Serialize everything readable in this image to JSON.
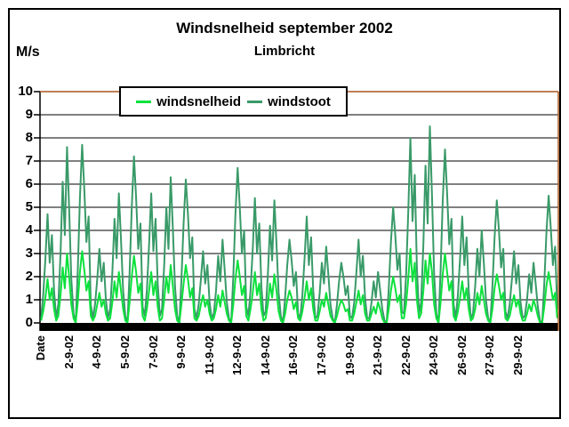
{
  "chart_data": {
    "type": "line",
    "title": "Windsnelheid september 2002",
    "subtitle": "Limbricht",
    "ylabel": "M/s",
    "xlabel": "Date",
    "ylim": [
      0,
      10
    ],
    "y_ticks": [
      0,
      1,
      2,
      3,
      4,
      5,
      6,
      7,
      8,
      9,
      10
    ],
    "grid": "horizontal",
    "legend_position": "top-inside",
    "plot_border_color": "#A9571F",
    "axis_color": "#000000",
    "x_tick_interval": 13,
    "x_tick_labels": [
      "Date",
      "2-9-02",
      "4-9-02",
      "5-9-02",
      "7-9-02",
      "9-9-02",
      "11-9-02",
      "12-9-02",
      "14-9-02",
      "16-9-02",
      "17-9-02",
      "19-9-02",
      "21-9-02",
      "22-9-02",
      "24-9-02",
      "26-9-02",
      "27-9-02",
      "29-9-02"
    ],
    "series": [
      {
        "name": "windsnelheid",
        "color": "#0CE23C",
        "values": [
          0.1,
          0.5,
          1.1,
          1.9,
          1.0,
          1.5,
          0.6,
          0.1,
          0.3,
          1.2,
          2.4,
          1.5,
          3.0,
          2.0,
          0.8,
          0.2,
          0.0,
          0.9,
          2.2,
          3.1,
          2.3,
          1.4,
          1.8,
          0.3,
          0.1,
          0.3,
          0.8,
          1.3,
          0.7,
          1.0,
          0.4,
          0.1,
          0.2,
          0.9,
          1.8,
          1.1,
          2.2,
          1.4,
          0.6,
          0.1,
          0.0,
          0.9,
          2.0,
          2.9,
          2.2,
          1.3,
          1.7,
          0.3,
          0.1,
          0.6,
          1.4,
          2.2,
          1.2,
          1.8,
          0.7,
          0.1,
          0.2,
          1.0,
          2.0,
          1.3,
          2.5,
          1.6,
          0.6,
          0.1,
          0.0,
          0.8,
          1.7,
          2.5,
          1.9,
          1.1,
          1.5,
          0.2,
          0.1,
          0.3,
          0.8,
          1.2,
          0.7,
          1.0,
          0.4,
          0.1,
          0.2,
          0.6,
          1.2,
          0.7,
          1.4,
          0.9,
          0.4,
          0.1,
          0.0,
          0.8,
          1.9,
          2.7,
          2.0,
          1.2,
          1.6,
          0.3,
          0.1,
          0.6,
          1.3,
          2.2,
          1.2,
          1.7,
          0.6,
          0.1,
          0.2,
          0.8,
          1.7,
          1.1,
          2.1,
          1.4,
          0.5,
          0.1,
          0.0,
          0.4,
          1.0,
          1.4,
          1.1,
          0.6,
          0.9,
          0.2,
          0.1,
          0.5,
          1.1,
          1.8,
          1.0,
          1.5,
          0.6,
          0.1,
          0.1,
          0.5,
          1.0,
          0.7,
          1.3,
          0.8,
          0.3,
          0.1,
          0.0,
          0.3,
          0.7,
          1.0,
          0.8,
          0.5,
          0.6,
          0.1,
          0.1,
          0.4,
          0.9,
          1.4,
          0.8,
          1.2,
          0.4,
          0.1,
          0.1,
          0.4,
          0.7,
          0.4,
          0.9,
          0.6,
          0.2,
          0.0,
          0.0,
          0.6,
          1.4,
          2.0,
          1.5,
          0.9,
          1.2,
          0.2,
          0.2,
          0.8,
          1.9,
          3.2,
          1.8,
          2.6,
          1.0,
          0.2,
          0.4,
          1.4,
          2.7,
          1.7,
          3.0,
          2.2,
          0.8,
          0.2,
          0.0,
          0.9,
          2.1,
          3.0,
          2.2,
          1.4,
          1.8,
          0.3,
          0.1,
          0.5,
          1.1,
          1.8,
          1.0,
          1.5,
          0.6,
          0.1,
          0.2,
          0.6,
          1.3,
          0.8,
          1.6,
          1.0,
          0.4,
          0.1,
          0.0,
          0.6,
          1.5,
          2.1,
          1.6,
          1.0,
          1.3,
          0.2,
          0.1,
          0.3,
          0.8,
          1.2,
          0.7,
          1.0,
          0.4,
          0.1,
          0.1,
          0.4,
          0.8,
          0.5,
          1.0,
          0.7,
          0.3,
          0.0,
          0.0,
          0.7,
          1.6,
          2.2,
          1.6,
          1.0,
          1.3,
          0.2
        ]
      },
      {
        "name": "windstoot",
        "color": "#399A68",
        "values": [
          0.2,
          1.2,
          2.8,
          4.7,
          2.6,
          3.8,
          1.4,
          0.2,
          0.8,
          3.0,
          6.1,
          3.8,
          7.6,
          4.9,
          1.9,
          0.4,
          0.0,
          2.3,
          5.4,
          7.7,
          5.8,
          3.5,
          4.6,
          0.8,
          0.2,
          0.8,
          1.9,
          3.2,
          1.8,
          2.6,
          1.0,
          0.2,
          0.6,
          2.2,
          4.5,
          2.8,
          5.6,
          3.6,
          1.4,
          0.3,
          0.0,
          2.2,
          5.0,
          7.2,
          5.4,
          3.2,
          4.3,
          0.7,
          0.3,
          1.4,
          3.4,
          5.6,
          3.1,
          4.5,
          1.7,
          0.3,
          0.6,
          2.5,
          5.0,
          3.2,
          6.3,
          4.1,
          1.6,
          0.3,
          0.0,
          1.9,
          4.3,
          6.2,
          4.7,
          2.8,
          3.7,
          0.6,
          0.2,
          0.8,
          1.9,
          3.1,
          1.7,
          2.5,
          0.9,
          0.2,
          0.4,
          1.4,
          2.9,
          1.8,
          3.6,
          2.3,
          0.9,
          0.2,
          0.0,
          2.0,
          4.7,
          6.7,
          5.0,
          3.0,
          4.0,
          0.7,
          0.3,
          1.4,
          3.2,
          5.4,
          3.0,
          4.3,
          1.6,
          0.3,
          0.5,
          2.1,
          4.2,
          2.7,
          5.3,
          3.4,
          1.3,
          0.3,
          0.0,
          1.1,
          2.5,
          3.6,
          2.7,
          1.6,
          2.2,
          0.4,
          0.2,
          1.2,
          2.8,
          4.6,
          2.5,
          3.7,
          1.4,
          0.2,
          0.3,
          1.3,
          2.6,
          1.7,
          3.3,
          2.1,
          0.8,
          0.2,
          0.0,
          0.8,
          1.8,
          2.6,
          2.0,
          1.2,
          1.6,
          0.3,
          0.2,
          0.9,
          2.2,
          3.6,
          2.0,
          2.9,
          1.1,
          0.2,
          0.2,
          0.9,
          1.8,
          1.1,
          2.2,
          1.4,
          0.6,
          0.1,
          0.0,
          1.5,
          3.5,
          5.0,
          3.8,
          2.3,
          3.0,
          0.5,
          0.4,
          2.0,
          4.8,
          8.0,
          4.4,
          6.4,
          2.4,
          0.4,
          0.9,
          3.4,
          6.8,
          4.3,
          8.5,
          5.5,
          2.1,
          0.4,
          0.0,
          2.3,
          5.3,
          7.5,
          5.6,
          3.4,
          4.5,
          0.8,
          0.2,
          1.2,
          2.8,
          4.6,
          2.5,
          3.7,
          1.4,
          0.2,
          0.4,
          1.6,
          3.2,
          2.0,
          4.0,
          2.6,
          1.0,
          0.2,
          0.0,
          1.6,
          3.7,
          5.3,
          4.0,
          2.4,
          3.2,
          0.5,
          0.2,
          0.8,
          1.9,
          3.1,
          1.7,
          2.5,
          0.9,
          0.2,
          0.3,
          1.0,
          2.1,
          1.3,
          2.6,
          1.7,
          0.7,
          0.1,
          0.0,
          1.7,
          3.9,
          5.5,
          4.1,
          2.5,
          3.3,
          0.6
        ]
      }
    ]
  }
}
